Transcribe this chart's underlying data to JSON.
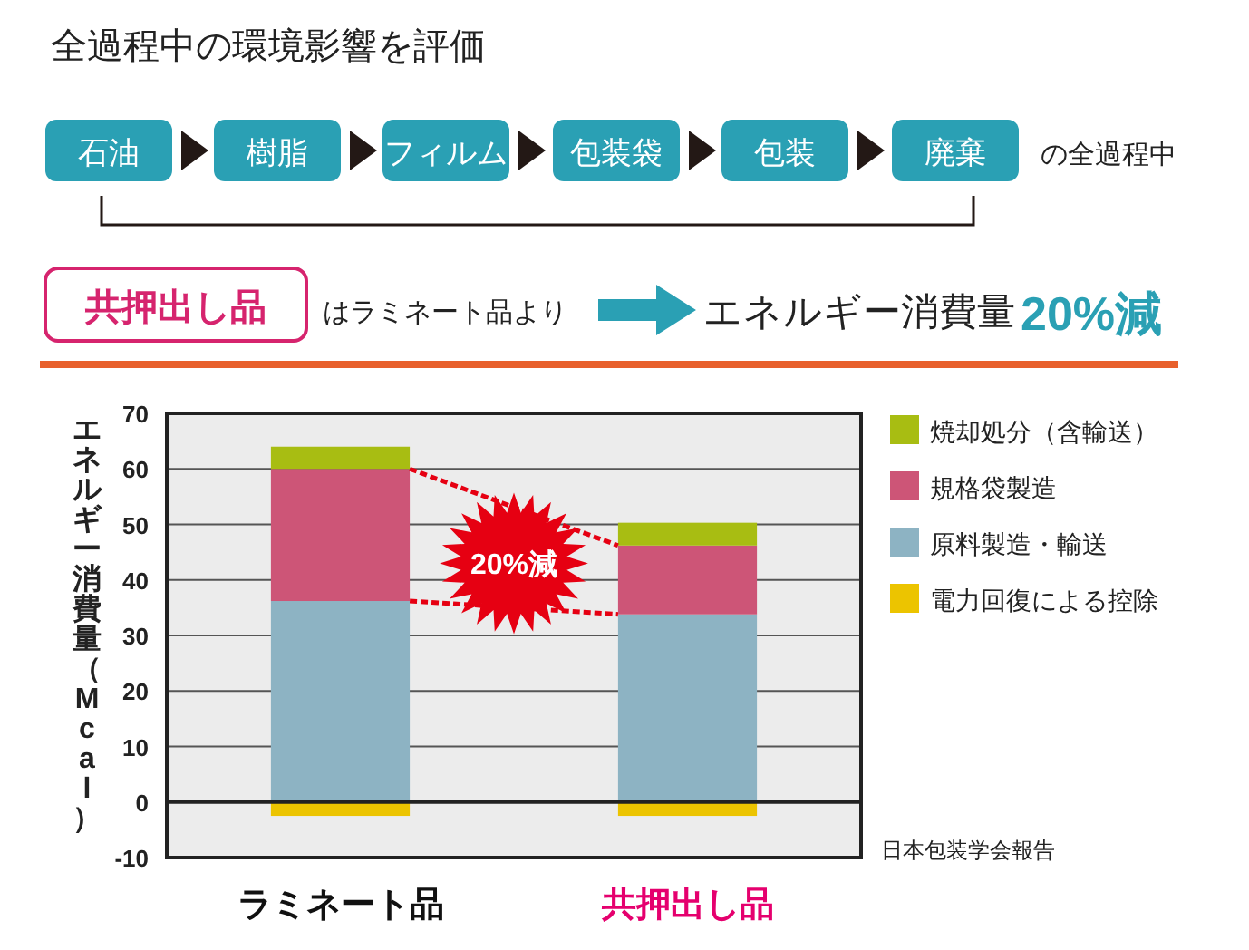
{
  "chart_data": {
    "type": "bar",
    "stacked": true,
    "title": "全過程中の環境影響を評価",
    "ylabel": "エネルギー消費量（Mcal）",
    "categories": [
      "ラミネート品",
      "共押出し品"
    ],
    "series": [
      {
        "name": "原料製造・輸送",
        "color": "#8db3c3",
        "values": [
          36.2,
          33.8
        ]
      },
      {
        "name": "規格袋製造",
        "color": "#cd5577",
        "values": [
          23.8,
          12.4
        ]
      },
      {
        "name": "焼却処分（含輸送）",
        "color": "#a8bd12",
        "values": [
          4.0,
          4.1
        ]
      },
      {
        "name": "電力回復による控除",
        "color": "#ecc400",
        "values": [
          -2.5,
          -2.5
        ]
      }
    ],
    "ylim": [
      -10,
      70
    ],
    "yticks": [
      -10,
      0,
      10,
      20,
      30,
      40,
      50,
      60,
      70
    ],
    "grid": "y",
    "legend": "right",
    "annotations": [
      "石油",
      "樹脂",
      "フィルム",
      "包装袋",
      "包装",
      "廃棄",
      "の全過程中",
      "共押出し品",
      "はラミネート品より",
      "エネルギー消費量",
      "20%減",
      "20%減",
      "日本包装学会報告"
    ]
  }
}
